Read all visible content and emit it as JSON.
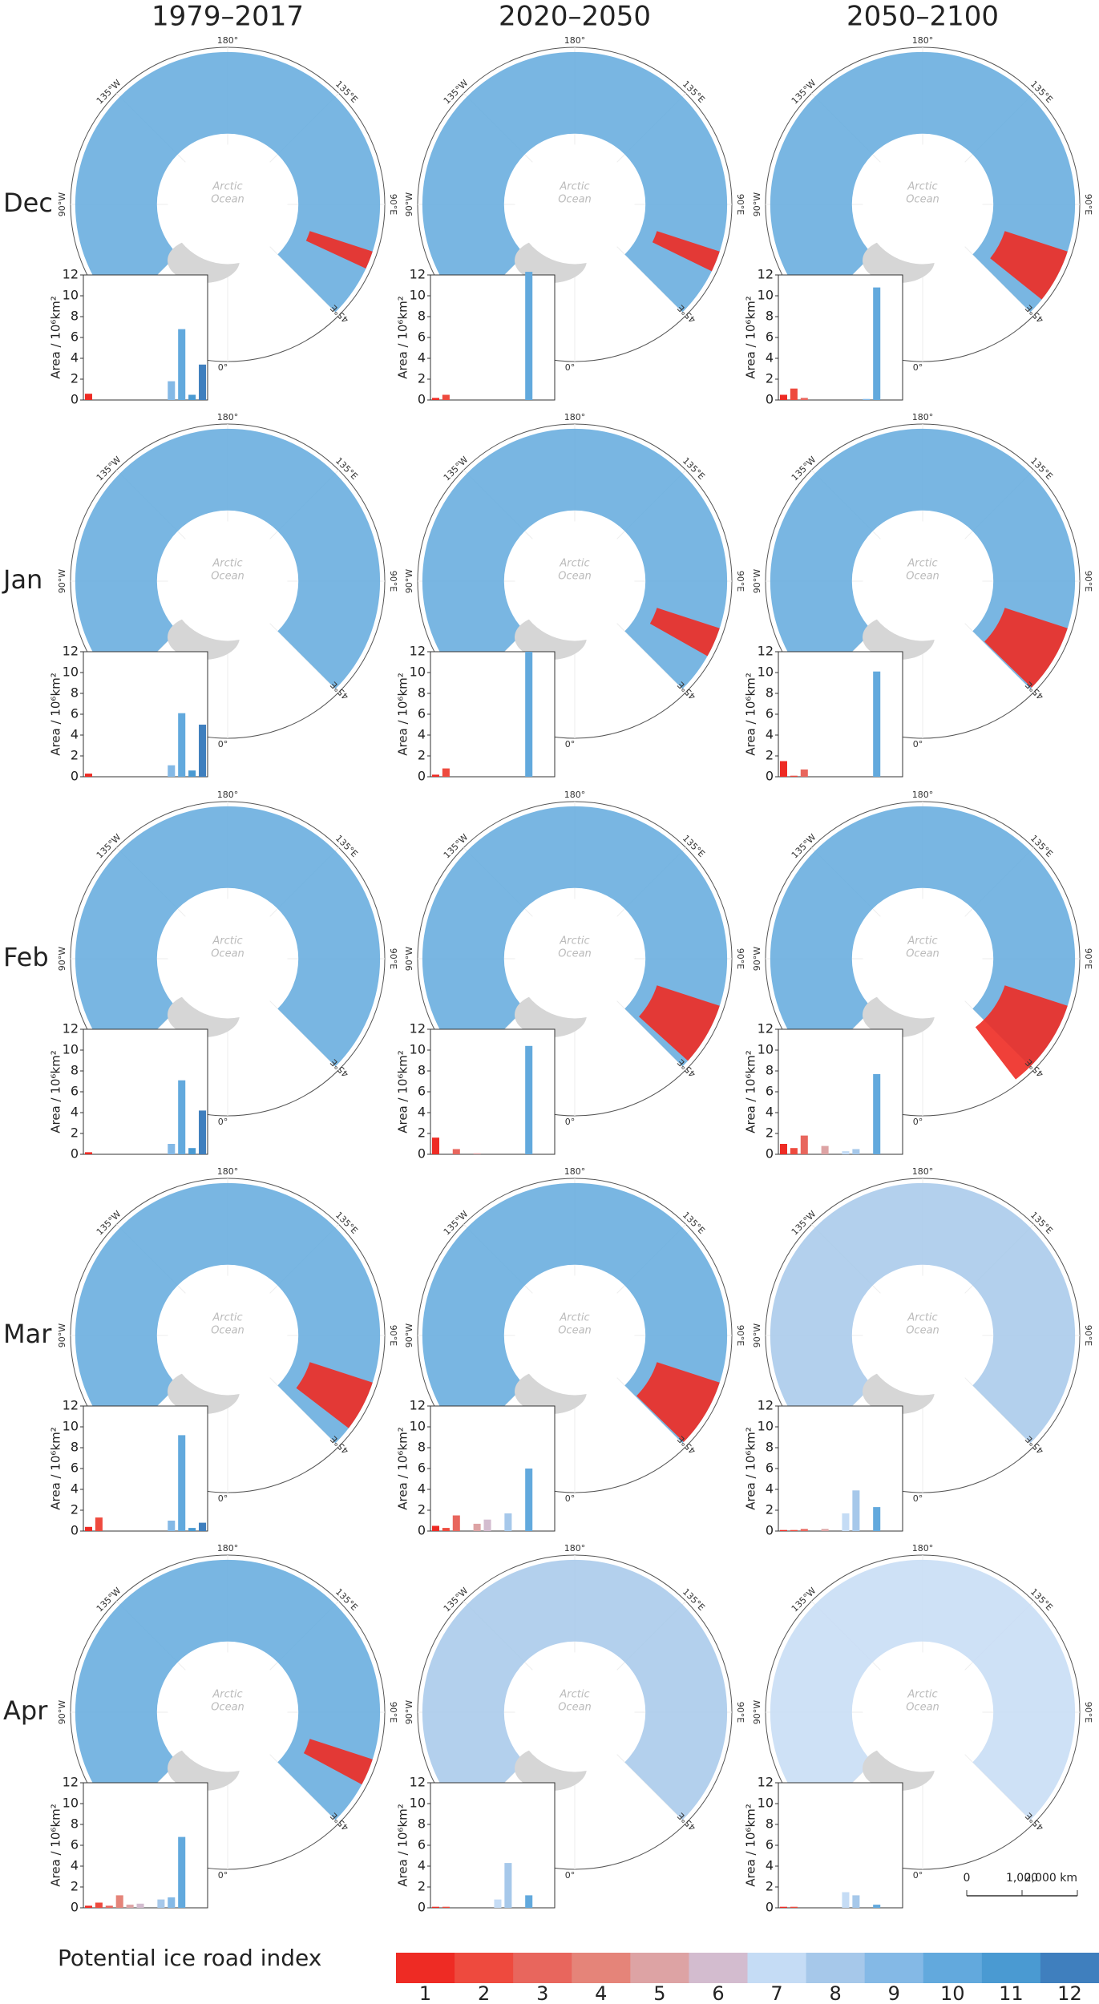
{
  "column_titles": [
    "1979–2017",
    "2020–2050",
    "2050–2100"
  ],
  "row_labels": [
    "Dec",
    "Jan",
    "Feb",
    "Mar",
    "Apr"
  ],
  "map_labels": {
    "n": "180°",
    "nw": "135°W",
    "ne": "135°E",
    "w": "90°W",
    "e": "90°E",
    "se": "45°E",
    "s": "0°",
    "ocean": [
      "Arctic",
      "Ocean"
    ]
  },
  "legend": {
    "title": "Potential ice road index",
    "categories": [
      "1",
      "2",
      "3",
      "4",
      "5",
      "6",
      "7",
      "8",
      "9",
      "10",
      "11",
      "12"
    ],
    "colors": [
      "#ee2b24",
      "#ee4a3e",
      "#e8665d",
      "#e58479",
      "#dda3a4",
      "#d3bccf",
      "#c5dcf5",
      "#a6c8ea",
      "#84b9e6",
      "#62a9dd",
      "#4a9ad2",
      "#3f7fbe"
    ]
  },
  "scale_bar": {
    "labels": [
      "0",
      "1,000",
      "2,000 km"
    ]
  },
  "chart_data": [
    {
      "type": "bar",
      "ylabel": "Area / 10⁶km²",
      "ylim": [
        0,
        12
      ],
      "yticks": [
        0,
        2,
        4,
        6,
        8,
        10,
        12
      ],
      "values": [
        0.6,
        0,
        0,
        0,
        0,
        0,
        0,
        0,
        1.8,
        6.8,
        0.5,
        3.4
      ]
    },
    {
      "type": "bar",
      "ylabel": "Area / 10⁶km²",
      "ylim": [
        0,
        12
      ],
      "yticks": [
        0,
        2,
        4,
        6,
        8,
        10,
        12
      ],
      "values": [
        0.2,
        0.5,
        0,
        0,
        0,
        0,
        0,
        0,
        0,
        12.3,
        0,
        0
      ]
    },
    {
      "type": "bar",
      "ylabel": "Area / 10⁶km²",
      "ylim": [
        0,
        12
      ],
      "yticks": [
        0,
        2,
        4,
        6,
        8,
        10,
        12
      ],
      "values": [
        0.5,
        1.1,
        0.2,
        0,
        0,
        0,
        0,
        0,
        0.1,
        10.8,
        0,
        0
      ]
    },
    {
      "type": "bar",
      "ylabel": "Area / 10⁶km²",
      "ylim": [
        0,
        12
      ],
      "yticks": [
        0,
        2,
        4,
        6,
        8,
        10,
        12
      ],
      "values": [
        0.3,
        0,
        0,
        0,
        0,
        0,
        0,
        0,
        1.1,
        6.1,
        0.6,
        5.0
      ]
    },
    {
      "type": "bar",
      "ylabel": "Area / 10⁶km²",
      "ylim": [
        0,
        12
      ],
      "yticks": [
        0,
        2,
        4,
        6,
        8,
        10,
        12
      ],
      "values": [
        0.2,
        0.8,
        0,
        0,
        0,
        0,
        0,
        0,
        0,
        12.0,
        0,
        0
      ]
    },
    {
      "type": "bar",
      "ylabel": "Area / 10⁶km²",
      "ylim": [
        0,
        12
      ],
      "yticks": [
        0,
        2,
        4,
        6,
        8,
        10,
        12
      ],
      "values": [
        1.5,
        0.1,
        0.7,
        0,
        0,
        0,
        0,
        0,
        0,
        10.1,
        0,
        0
      ]
    },
    {
      "type": "bar",
      "ylabel": "Area / 10⁶km²",
      "ylim": [
        0,
        12
      ],
      "yticks": [
        0,
        2,
        4,
        6,
        8,
        10,
        12
      ],
      "values": [
        0.2,
        0,
        0,
        0,
        0,
        0,
        0,
        0,
        1.0,
        7.1,
        0.6,
        4.2
      ]
    },
    {
      "type": "bar",
      "ylabel": "Area / 10⁶km²",
      "ylim": [
        0,
        12
      ],
      "yticks": [
        0,
        2,
        4,
        6,
        8,
        10,
        12
      ],
      "values": [
        1.6,
        0,
        0.5,
        0,
        0.1,
        0,
        0,
        0,
        0,
        10.4,
        0,
        0
      ]
    },
    {
      "type": "bar",
      "ylabel": "Area / 10⁶km²",
      "ylim": [
        0,
        12
      ],
      "yticks": [
        0,
        2,
        4,
        6,
        8,
        10,
        12
      ],
      "values": [
        1.0,
        0.6,
        1.8,
        0,
        0.8,
        0,
        0.3,
        0.5,
        0,
        7.7,
        0,
        0
      ]
    },
    {
      "type": "bar",
      "ylabel": "Area / 10⁶km²",
      "ylim": [
        0,
        12
      ],
      "yticks": [
        0,
        2,
        4,
        6,
        8,
        10,
        12
      ],
      "values": [
        0.4,
        1.3,
        0,
        0,
        0,
        0,
        0,
        0,
        1.0,
        9.2,
        0.3,
        0.8
      ]
    },
    {
      "type": "bar",
      "ylabel": "Area / 10⁶km²",
      "ylim": [
        0,
        12
      ],
      "yticks": [
        0,
        2,
        4,
        6,
        8,
        10,
        12
      ],
      "values": [
        0.5,
        0.3,
        1.5,
        0,
        0.7,
        1.1,
        0,
        1.7,
        0,
        6.0,
        0,
        0
      ]
    },
    {
      "type": "bar",
      "ylabel": "Area / 10⁶km²",
      "ylim": [
        0,
        12
      ],
      "yticks": [
        0,
        2,
        4,
        6,
        8,
        10,
        12
      ],
      "values": [
        0.1,
        0.1,
        0.2,
        0,
        0.2,
        0,
        1.7,
        3.9,
        0,
        2.3,
        0,
        0
      ]
    },
    {
      "type": "bar",
      "ylabel": "Area / 10⁶km²",
      "ylim": [
        0,
        12
      ],
      "yticks": [
        0,
        2,
        4,
        6,
        8,
        10,
        12
      ],
      "values": [
        0.2,
        0.5,
        0.2,
        1.2,
        0.3,
        0.4,
        0,
        0.8,
        1.0,
        6.8,
        0,
        0
      ]
    },
    {
      "type": "bar",
      "ylabel": "Area / 10⁶km²",
      "ylim": [
        0,
        12
      ],
      "yticks": [
        0,
        2,
        4,
        6,
        8,
        10,
        12
      ],
      "values": [
        0.1,
        0.1,
        0,
        0,
        0,
        0,
        0.8,
        4.3,
        0,
        1.2,
        0,
        0
      ]
    },
    {
      "type": "bar",
      "ylabel": "Area / 10⁶km²",
      "ylim": [
        0,
        12
      ],
      "yticks": [
        0,
        2,
        4,
        6,
        8,
        10,
        12
      ],
      "values": [
        0.1,
        0.1,
        0,
        0,
        0,
        0,
        1.5,
        1.2,
        0,
        0.3,
        0,
        0
      ]
    }
  ]
}
